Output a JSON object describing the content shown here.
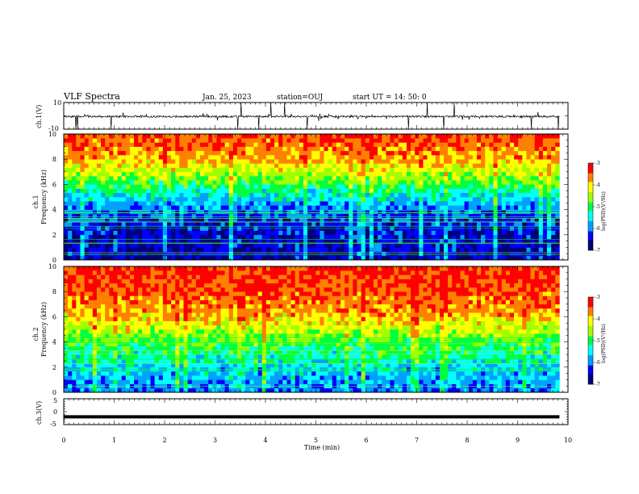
{
  "header": {
    "title": "VLF Spectra",
    "date": "Jan. 25, 2023",
    "station": "station=OUJ",
    "start": "start  UT =   14: 50: 0"
  },
  "chart_data": [
    {
      "type": "line",
      "panel": "ch1-waveform",
      "ylabel": "ch.1(V)",
      "ylim": [
        -10,
        10
      ],
      "y_ticks": [
        "10",
        "-10"
      ],
      "baseline_v": -0.5,
      "amplitude_v": 1.5,
      "color": "#000000"
    },
    {
      "type": "heatmap",
      "panel": "ch1-spectrogram",
      "ylabel_line1": "ch.1",
      "ylabel_line2": "Frequency  (kHz)",
      "ylim": [
        0,
        10
      ],
      "y_ticks": [
        "0",
        "2",
        "4",
        "6",
        "8",
        "10"
      ],
      "color_scale": {
        "label": "log(PSD)(V²/Hz)",
        "range": [
          -7,
          -3
        ],
        "ticks": [
          "-3",
          "-4",
          "-5",
          "-6",
          "-7"
        ]
      },
      "level_profile": [
        [
          0,
          -6.8
        ],
        [
          2,
          -6.6
        ],
        [
          4,
          -6.2
        ],
        [
          6,
          -5.0
        ],
        [
          8,
          -3.9
        ],
        [
          10,
          -3.4
        ]
      ]
    },
    {
      "type": "heatmap",
      "panel": "ch2-spectrogram",
      "ylabel_line1": "ch.2",
      "ylabel_line2": "Frequency  (kHz)",
      "ylim": [
        0,
        10
      ],
      "y_ticks": [
        "0",
        "2",
        "4",
        "6",
        "8",
        "10"
      ],
      "color_scale": {
        "label": "log(PSD)(V²/Hz)",
        "range": [
          -7,
          -3
        ],
        "ticks": [
          "-3",
          "-4",
          "-5",
          "-6",
          "-7"
        ]
      },
      "level_profile": [
        [
          0,
          -6.2
        ],
        [
          2,
          -5.7
        ],
        [
          4,
          -5.0
        ],
        [
          6,
          -4.0
        ],
        [
          8,
          -3.5
        ],
        [
          10,
          -3.3
        ]
      ]
    },
    {
      "type": "line",
      "panel": "ch3-waveform",
      "ylabel": "ch.3(V)",
      "ylim": [
        -5,
        5
      ],
      "y_ticks": [
        "5",
        "0",
        "-5"
      ],
      "baseline_v": -2.0,
      "color": "#000000"
    }
  ],
  "x_axis": {
    "label": "Time  (min)",
    "range": [
      0,
      10
    ],
    "data_end": 9.83,
    "ticks": [
      "0",
      "1",
      "2",
      "3",
      "4",
      "5",
      "6",
      "7",
      "8",
      "9",
      "10"
    ]
  },
  "colormap": [
    "#00007a",
    "#0000ff",
    "#00a0ff",
    "#00ffff",
    "#00ff40",
    "#a0ff00",
    "#ffff00",
    "#ff8000",
    "#ff0000"
  ]
}
